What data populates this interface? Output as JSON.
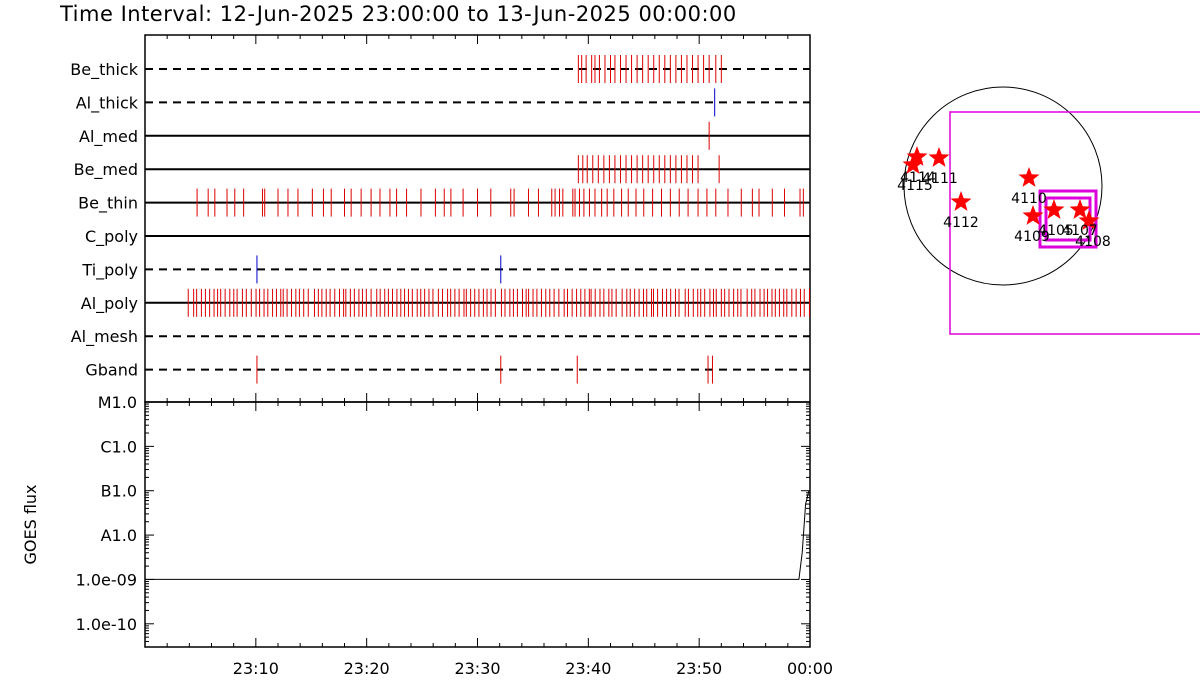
{
  "title": "Time Interval: 12-Jun-2025 23:00:00 to 13-Jun-2025 00:00:00",
  "colors": {
    "normal": "#dd0000",
    "attenuated": "#0000cc",
    "axis": "#000000",
    "fov": "#dd00dd",
    "star": "#ff0000"
  },
  "chart_data": [
    {
      "type": "event-timeline",
      "time_range": [
        "23:00",
        "00:00"
      ],
      "channels": [
        {
          "name": "Be_thick",
          "line": "dashed",
          "events": [
            {
              "color": "red",
              "times": [
                "23:39.1",
                "23:39.4",
                "23:39.8",
                "23:40.3",
                "23:40.6",
                "23:41.0",
                "23:41.5",
                "23:42.0",
                "23:42.4",
                "23:42.9",
                "23:43.4",
                "23:43.9",
                "23:44.4",
                "23:44.9",
                "23:45.4",
                "23:45.9",
                "23:46.4",
                "23:46.9",
                "23:47.4",
                "23:47.9",
                "23:48.4",
                "23:48.9",
                "23:49.4",
                "23:49.9",
                "23:50.4",
                "23:50.9",
                "23:51.5",
                "23:52.0"
              ]
            }
          ]
        },
        {
          "name": "Al_thick",
          "line": "dashed",
          "events": [
            {
              "color": "blue",
              "times": [
                "23:51.4"
              ]
            }
          ]
        },
        {
          "name": "Al_med",
          "line": "solid",
          "events": [
            {
              "color": "red",
              "times": [
                "23:50.9"
              ]
            }
          ]
        },
        {
          "name": "Be_med",
          "line": "solid",
          "events": [
            {
              "color": "red",
              "times": [
                "23:39.1",
                "23:39.5",
                "23:39.9",
                "23:40.4",
                "23:40.9",
                "23:41.4",
                "23:41.9",
                "23:42.4",
                "23:42.9",
                "23:43.4",
                "23:43.9",
                "23:44.4",
                "23:44.9",
                "23:45.4",
                "23:45.9",
                "23:46.4",
                "23:46.9",
                "23:47.4",
                "23:47.9",
                "23:48.4",
                "23:48.9",
                "23:49.4",
                "23:49.9",
                "23:51.8"
              ]
            }
          ]
        },
        {
          "name": "Be_thin",
          "line": "solid",
          "events": [
            {
              "color": "red",
              "times": [
                "23:04.7",
                "23:05.7",
                "23:06.3",
                "23:07.4",
                "23:08.1",
                "23:08.9",
                "23:10.6",
                "23:10.8",
                "23:12.0",
                "23:12.9",
                "23:13.8",
                "23:15.1",
                "23:16.1",
                "23:16.8",
                "23:18.0",
                "23:18.6",
                "23:19.5",
                "23:20.4",
                "23:21.2",
                "23:22.1",
                "23:22.7",
                "23:23.6",
                "23:24.9",
                "23:26.2",
                "23:27.0",
                "23:27.6",
                "23:28.7",
                "23:30.0",
                "23:31.2",
                "23:33.0",
                "23:33.3",
                "23:34.6",
                "23:35.5",
                "23:36.7",
                "23:37.0",
                "23:37.4",
                "23:37.7",
                "23:38.6",
                "23:38.8",
                "23:39.2",
                "23:39.6",
                "23:40.1",
                "23:40.6",
                "23:41.2",
                "23:41.7",
                "23:42.3",
                "23:43.0",
                "23:43.6",
                "23:44.3",
                "23:45.0",
                "23:45.8",
                "23:46.6",
                "23:47.4",
                "23:48.2",
                "23:49.0",
                "23:49.9",
                "23:50.7",
                "23:51.5",
                "23:52.6",
                "23:53.8",
                "23:54.8",
                "23:55.4",
                "23:56.6",
                "23:57.7",
                "23:59.1",
                "23:59.4"
              ]
            }
          ]
        },
        {
          "name": "C_poly",
          "line": "solid",
          "events": []
        },
        {
          "name": "Ti_poly",
          "line": "dashed",
          "events": [
            {
              "color": "blue",
              "times": [
                "23:10.1",
                "23:32.1"
              ]
            }
          ]
        },
        {
          "name": "Al_poly",
          "line": "solid",
          "events": [
            {
              "color": "red",
              "dense_range": [
                "23:03.9",
                "23:59.9"
              ],
              "approx_count": 150
            }
          ]
        },
        {
          "name": "Al_mesh",
          "line": "dashed",
          "events": []
        },
        {
          "name": "Gband",
          "line": "dashed",
          "events": [
            {
              "color": "red",
              "times": [
                "23:10.1",
                "23:32.1",
                "23:39.0",
                "23:50.8",
                "23:51.2"
              ]
            }
          ]
        }
      ]
    },
    {
      "type": "line",
      "ylabel": "GOES flux",
      "yscale": "log",
      "ytick_labels": [
        "M1.0",
        "C1.0",
        "B1.0",
        "A1.0",
        "1.0e-09",
        "1.0e-10"
      ],
      "ytick_values": [
        1e-05,
        1e-06,
        1e-07,
        1e-08,
        1e-09,
        1e-10
      ],
      "ylim": [
        3e-11,
        1e-05
      ],
      "xlim": [
        "23:00",
        "00:00"
      ],
      "xtick_labels": [
        "23:10",
        "23:20",
        "23:30",
        "23:40",
        "23:50",
        "00:00"
      ],
      "series": [
        {
          "x": [
            "23:00.0",
            "23:59.0",
            "23:59.3",
            "23:59.6",
            "23:59.9"
          ],
          "y": [
            1e-09,
            1e-09,
            4e-09,
            5e-08,
            1e-07
          ]
        }
      ]
    },
    {
      "type": "scatter",
      "subtype": "solar-disk-map",
      "markers": [
        {
          "label": "4115"
        },
        {
          "label": "4114"
        },
        {
          "label": "4111"
        },
        {
          "label": "4112"
        },
        {
          "label": "4110"
        },
        {
          "label": "4109"
        },
        {
          "label": "4105"
        },
        {
          "label": "4107"
        },
        {
          "label": "4108"
        }
      ]
    }
  ]
}
